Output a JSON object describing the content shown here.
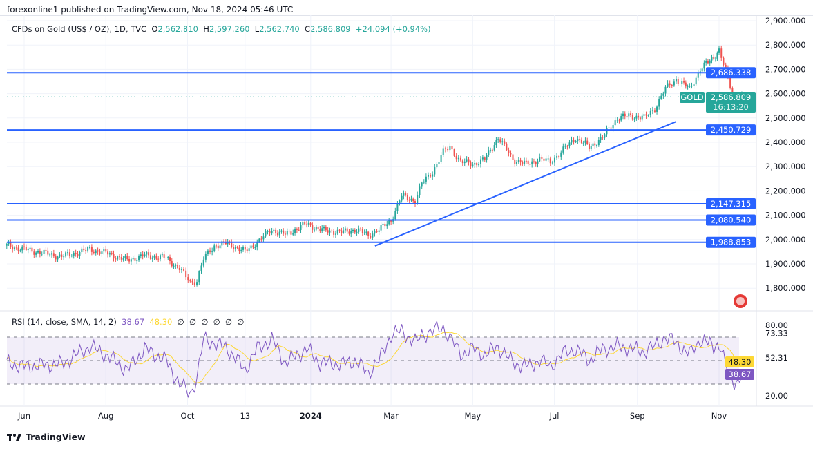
{
  "publisher_line": "forexonline1 published on TradingView.com, Nov 18, 2024 05:46 UTC",
  "symbol": {
    "name": "CFDs on Gold (US$ / OZ), 1D, TVC",
    "open_label": "O",
    "open": "2,562.810",
    "high_label": "H",
    "high": "2,597.260",
    "low_label": "L",
    "low": "2,562.740",
    "close_label": "C",
    "close": "2,586.809",
    "change": "+24.094 (+0.94%)",
    "ticker_tag": "GOLD",
    "last_price": "2,586.809",
    "countdown": "16:13:20"
  },
  "rsi_legend": {
    "name": "RSI (14, close, SMA, 14, 2)",
    "rsi": "38.67",
    "sma": "48.30",
    "empty_values": [
      "∅",
      "∅",
      "∅",
      "∅",
      "∅",
      "∅"
    ]
  },
  "footer": {
    "brand": "TradingView"
  },
  "colors": {
    "up": "#26a69a",
    "down": "#ef5350",
    "level_line": "#2962ff",
    "rsi": "#7e57c2",
    "rsi_sma": "#fdd835",
    "band": "#7e57c2"
  },
  "chart_data": [
    {
      "type": "candlestick",
      "title": "CFDs on Gold (US$ / OZ), 1D, TVC",
      "ylim": [
        1730,
        2920
      ],
      "y_ticks": [
        "2,900.000",
        "2,800.000",
        "2,700.000",
        "2,600.000",
        "2,500.000",
        "2,400.000",
        "2,300.000",
        "2,200.000",
        "2,100.000",
        "2,000.000",
        "1,900.000",
        "1,800.000"
      ],
      "y_tick_values": [
        2900,
        2800,
        2700,
        2600,
        2500,
        2400,
        2300,
        2200,
        2100,
        2000,
        1900,
        1800
      ],
      "x_ticks": [
        {
          "label": "Jun",
          "date": "2023-06-01"
        },
        {
          "label": "Aug",
          "date": "2023-08-01"
        },
        {
          "label": "Oct",
          "date": "2023-10-01"
        },
        {
          "label": "13",
          "date": "2023-11-13"
        },
        {
          "label": "2024",
          "date": "2024-01-01"
        },
        {
          "label": "Mar",
          "date": "2024-03-01"
        },
        {
          "label": "May",
          "date": "2024-05-01"
        },
        {
          "label": "Jul",
          "date": "2024-07-01"
        },
        {
          "label": "Sep",
          "date": "2024-09-01"
        },
        {
          "label": "Nov",
          "date": "2024-11-01"
        }
      ],
      "approx_close": [
        [
          "2023-05-19",
          1975
        ],
        [
          "2023-06-01",
          1960
        ],
        [
          "2023-06-29",
          1930
        ],
        [
          "2023-07-20",
          1960
        ],
        [
          "2023-08-01",
          1945
        ],
        [
          "2023-08-17",
          1915
        ],
        [
          "2023-08-30",
          1935
        ],
        [
          "2023-09-15",
          1925
        ],
        [
          "2023-09-25",
          1880
        ],
        [
          "2023-10-03",
          1825
        ],
        [
          "2023-10-08",
          1832
        ],
        [
          "2023-10-13",
          1920
        ],
        [
          "2023-10-21",
          1975
        ],
        [
          "2023-10-31",
          1985
        ],
        [
          "2023-11-13",
          1950
        ],
        [
          "2023-11-22",
          1990
        ],
        [
          "2023-12-03",
          2040
        ],
        [
          "2023-12-13",
          2020
        ],
        [
          "2023-12-29",
          2065
        ],
        [
          "2024-01-08",
          2040
        ],
        [
          "2024-01-24",
          2030
        ],
        [
          "2024-02-03",
          2040
        ],
        [
          "2024-02-13",
          2020
        ],
        [
          "2024-02-21",
          2040
        ],
        [
          "2024-03-01",
          2080
        ],
        [
          "2024-03-09",
          2180
        ],
        [
          "2024-03-19",
          2160
        ],
        [
          "2024-03-24",
          2230
        ],
        [
          "2024-04-01",
          2280
        ],
        [
          "2024-04-09",
          2360
        ],
        [
          "2024-04-14",
          2380
        ],
        [
          "2024-04-22",
          2320
        ],
        [
          "2024-05-01",
          2310
        ],
        [
          "2024-05-10",
          2330
        ],
        [
          "2024-05-20",
          2420
        ],
        [
          "2024-05-31",
          2330
        ],
        [
          "2024-06-10",
          2310
        ],
        [
          "2024-06-20",
          2330
        ],
        [
          "2024-06-28",
          2320
        ],
        [
          "2024-07-06",
          2360
        ],
        [
          "2024-07-17",
          2420
        ],
        [
          "2024-07-27",
          2380
        ],
        [
          "2024-08-06",
          2420
        ],
        [
          "2024-08-17",
          2500
        ],
        [
          "2024-08-27",
          2510
        ],
        [
          "2024-09-06",
          2500
        ],
        [
          "2024-09-14",
          2540
        ],
        [
          "2024-09-22",
          2620
        ],
        [
          "2024-09-30",
          2660
        ],
        [
          "2024-10-10",
          2620
        ],
        [
          "2024-10-18",
          2700
        ],
        [
          "2024-10-28",
          2750
        ],
        [
          "2024-11-01",
          2780
        ],
        [
          "2024-11-06",
          2690
        ],
        [
          "2024-11-11",
          2600
        ],
        [
          "2024-11-15",
          2570
        ],
        [
          "2024-11-18",
          2586.809
        ]
      ],
      "horizontal_levels": [
        {
          "price": 2686.338,
          "label": "2,686.338"
        },
        {
          "price": 2450.729,
          "label": "2,450.729"
        },
        {
          "price": 2147.315,
          "label": "2,147.315"
        },
        {
          "price": 2080.54,
          "label": "2,080.540"
        },
        {
          "price": 1988.853,
          "label": "1,988.853"
        }
      ],
      "trendline": [
        [
          "2024-02-18",
          1974
        ],
        [
          "2024-09-30",
          2485
        ]
      ],
      "grid": true
    },
    {
      "type": "line",
      "title": "RSI (14, close, SMA, 14, 2)",
      "ylim": [
        10,
        85
      ],
      "y_ticks": [
        "80.00",
        "73.33",
        "52.31",
        "20.00"
      ],
      "y_tick_values": [
        80,
        73.33,
        52.31,
        20
      ],
      "bands": [
        30,
        50,
        70
      ],
      "series": [
        {
          "name": "RSI",
          "last": 38.67,
          "values": [
            [
              "2023-05-19",
              48
            ],
            [
              "2023-06-01",
              45
            ],
            [
              "2023-06-29",
              47
            ],
            [
              "2023-07-20",
              62
            ],
            [
              "2023-08-01",
              55
            ],
            [
              "2023-08-17",
              42
            ],
            [
              "2023-08-30",
              60
            ],
            [
              "2023-09-15",
              50
            ],
            [
              "2023-09-25",
              30
            ],
            [
              "2023-10-03",
              22
            ],
            [
              "2023-10-08",
              35
            ],
            [
              "2023-10-13",
              68
            ],
            [
              "2023-10-21",
              65
            ],
            [
              "2023-10-31",
              60
            ],
            [
              "2023-11-13",
              42
            ],
            [
              "2023-11-22",
              60
            ],
            [
              "2023-12-03",
              68
            ],
            [
              "2023-12-13",
              48
            ],
            [
              "2023-12-29",
              60
            ],
            [
              "2024-01-08",
              48
            ],
            [
              "2024-01-24",
              47
            ],
            [
              "2024-02-03",
              50
            ],
            [
              "2024-02-13",
              40
            ],
            [
              "2024-02-21",
              50
            ],
            [
              "2024-03-01",
              72
            ],
            [
              "2024-03-09",
              75
            ],
            [
              "2024-03-19",
              65
            ],
            [
              "2024-03-24",
              72
            ],
            [
              "2024-04-01",
              75
            ],
            [
              "2024-04-09",
              78
            ],
            [
              "2024-04-14",
              70
            ],
            [
              "2024-04-22",
              55
            ],
            [
              "2024-05-01",
              60
            ],
            [
              "2024-05-10",
              55
            ],
            [
              "2024-05-20",
              62
            ],
            [
              "2024-05-31",
              48
            ],
            [
              "2024-06-10",
              45
            ],
            [
              "2024-06-20",
              50
            ],
            [
              "2024-06-28",
              45
            ],
            [
              "2024-07-06",
              55
            ],
            [
              "2024-07-17",
              60
            ],
            [
              "2024-07-27",
              50
            ],
            [
              "2024-08-06",
              60
            ],
            [
              "2024-08-17",
              62
            ],
            [
              "2024-08-27",
              60
            ],
            [
              "2024-09-06",
              58
            ],
            [
              "2024-09-14",
              62
            ],
            [
              "2024-09-22",
              70
            ],
            [
              "2024-09-30",
              65
            ],
            [
              "2024-10-10",
              55
            ],
            [
              "2024-10-18",
              68
            ],
            [
              "2024-10-28",
              62
            ],
            [
              "2024-11-01",
              65
            ],
            [
              "2024-11-06",
              45
            ],
            [
              "2024-11-11",
              33
            ],
            [
              "2024-11-15",
              32
            ],
            [
              "2024-11-18",
              38.67
            ]
          ]
        },
        {
          "last": 48.3
        }
      ]
    }
  ]
}
